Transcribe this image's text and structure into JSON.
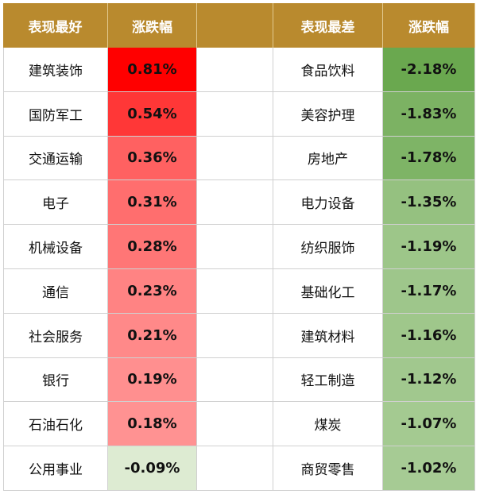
{
  "header": {
    "best_label": "表现最好",
    "change_label": "涨跌幅",
    "worst_label": "表现最差",
    "change_label_2": "涨跌幅"
  },
  "colors": {
    "header_bg": "#b98a2e",
    "positive_max": "#ff0000",
    "negative_max": "#6aa84f"
  },
  "chart_data": {
    "type": "table",
    "columns": [
      "表现最好",
      "涨跌幅",
      "",
      "表现最差",
      "涨跌幅"
    ],
    "best": [
      {
        "name": "建筑装饰",
        "change": "0.81%",
        "value": 0.81
      },
      {
        "name": "国防军工",
        "change": "0.54%",
        "value": 0.54
      },
      {
        "name": "交通运输",
        "change": "0.36%",
        "value": 0.36
      },
      {
        "name": "电子",
        "change": "0.31%",
        "value": 0.31
      },
      {
        "name": "机械设备",
        "change": "0.28%",
        "value": 0.28
      },
      {
        "name": "通信",
        "change": "0.23%",
        "value": 0.23
      },
      {
        "name": "社会服务",
        "change": "0.21%",
        "value": 0.21
      },
      {
        "name": "银行",
        "change": "0.19%",
        "value": 0.19
      },
      {
        "name": "石油石化",
        "change": "0.18%",
        "value": 0.18
      },
      {
        "name": "公用事业",
        "change": "-0.09%",
        "value": -0.09
      }
    ],
    "worst": [
      {
        "name": "食品饮料",
        "change": "-2.18%",
        "value": -2.18
      },
      {
        "name": "美容护理",
        "change": "-1.83%",
        "value": -1.83
      },
      {
        "name": "房地产",
        "change": "-1.78%",
        "value": -1.78
      },
      {
        "name": "电力设备",
        "change": "-1.35%",
        "value": -1.35
      },
      {
        "name": "纺织服饰",
        "change": "-1.19%",
        "value": -1.19
      },
      {
        "name": "基础化工",
        "change": "-1.17%",
        "value": -1.17
      },
      {
        "name": "建筑材料",
        "change": "-1.16%",
        "value": -1.16
      },
      {
        "name": "轻工制造",
        "change": "-1.12%",
        "value": -1.12
      },
      {
        "name": "煤炭",
        "change": "-1.07%",
        "value": -1.07
      },
      {
        "name": "商贸零售",
        "change": "-1.02%",
        "value": -1.02
      }
    ]
  }
}
